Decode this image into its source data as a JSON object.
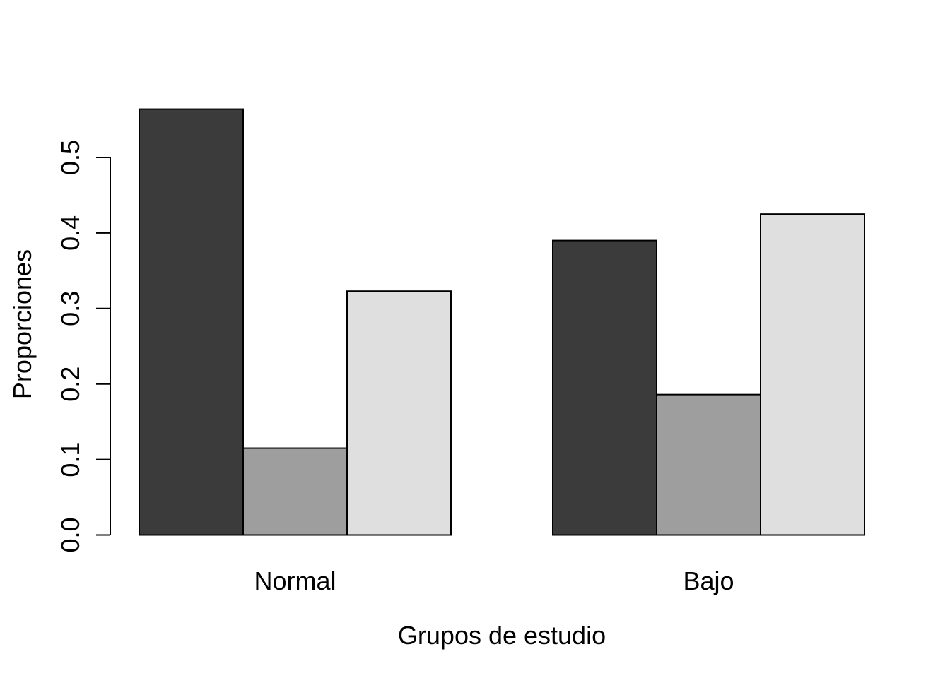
{
  "chart_data": {
    "type": "bar",
    "title": "",
    "xlabel": "Grupos de estudio",
    "ylabel": "Proporciones",
    "categories": [
      "Normal",
      "Bajo"
    ],
    "series": [
      {
        "name": "dark-gray-bar",
        "color": "#3B3B3B",
        "values": [
          0.564,
          0.39
        ]
      },
      {
        "name": "medium-gray-bar",
        "color": "#9E9E9E",
        "values": [
          0.115,
          0.186
        ]
      },
      {
        "name": "light-gray-bar",
        "color": "#DFDFDF",
        "values": [
          0.323,
          0.425
        ]
      }
    ],
    "bar_border_color": "#000000",
    "axis_color": "#000000",
    "background_color": "#FFFFFF",
    "ylim": [
      0,
      0.5
    ],
    "ytick_labels": [
      "0.0",
      "0.1",
      "0.2",
      "0.3",
      "0.4",
      "0.5"
    ],
    "ytick_values": [
      0.0,
      0.1,
      0.2,
      0.3,
      0.4,
      0.5
    ],
    "grid": false,
    "legend": "none"
  }
}
